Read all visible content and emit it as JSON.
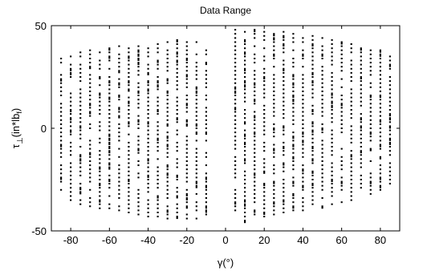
{
  "chart_data": {
    "type": "scatter",
    "title": "Data Range",
    "xlabel": "γ(°)",
    "ylabel": {
      "base": "τ",
      "sub": "⊥",
      "unit_pre": "(in*lb",
      "unit_sub": "f",
      "unit_post": ")"
    },
    "xlim": [
      -90,
      90
    ],
    "ylim": [
      -50,
      50
    ],
    "xticks": [
      -80,
      -60,
      -40,
      -20,
      0,
      20,
      40,
      60,
      80
    ],
    "xtick_labels": [
      "-80",
      "-60",
      "-40",
      "-20",
      "0",
      "20",
      "40",
      "60",
      "80"
    ],
    "yticks": [
      -50,
      0,
      50
    ],
    "ytick_labels": [
      "-50",
      "0",
      "50"
    ],
    "grid": false,
    "legend": "none",
    "marker_color": "#000000",
    "columns": [
      {
        "x": -85,
        "ymin": -30,
        "ymax": 34
      },
      {
        "x": -80,
        "ymin": -35,
        "ymax": 36
      },
      {
        "x": -75,
        "ymin": -37,
        "ymax": 37
      },
      {
        "x": -70,
        "ymin": -38,
        "ymax": 38
      },
      {
        "x": -65,
        "ymin": -39,
        "ymax": 38
      },
      {
        "x": -60,
        "ymin": -39,
        "ymax": 39
      },
      {
        "x": -55,
        "ymin": -40,
        "ymax": 40
      },
      {
        "x": -50,
        "ymin": -41,
        "ymax": 40
      },
      {
        "x": -45,
        "ymin": -42,
        "ymax": 41
      },
      {
        "x": -40,
        "ymin": -43,
        "ymax": 42
      },
      {
        "x": -35,
        "ymin": -43,
        "ymax": 42
      },
      {
        "x": -30,
        "ymin": -44,
        "ymax": 43
      },
      {
        "x": -25,
        "ymin": -43,
        "ymax": 43
      },
      {
        "x": -20,
        "ymin": -44,
        "ymax": 43
      },
      {
        "x": -15,
        "ymin": -44,
        "ymax": 42
      },
      {
        "x": -10,
        "ymin": -42,
        "ymax": 40
      },
      {
        "x": 5,
        "ymin": -42,
        "ymax": 48
      },
      {
        "x": 10,
        "ymin": -45,
        "ymax": 49
      },
      {
        "x": 15,
        "ymin": -44,
        "ymax": 48
      },
      {
        "x": 20,
        "ymin": -43,
        "ymax": 48
      },
      {
        "x": 25,
        "ymin": -42,
        "ymax": 47
      },
      {
        "x": 30,
        "ymin": -41,
        "ymax": 47
      },
      {
        "x": 35,
        "ymin": -40,
        "ymax": 46
      },
      {
        "x": 40,
        "ymin": -40,
        "ymax": 45
      },
      {
        "x": 45,
        "ymin": -39,
        "ymax": 45
      },
      {
        "x": 50,
        "ymin": -38,
        "ymax": 44
      },
      {
        "x": 55,
        "ymin": -37,
        "ymax": 43
      },
      {
        "x": 60,
        "ymin": -36,
        "ymax": 42
      },
      {
        "x": 65,
        "ymin": -35,
        "ymax": 41
      },
      {
        "x": 70,
        "ymin": -33,
        "ymax": 40
      },
      {
        "x": 75,
        "ymin": -32,
        "ymax": 39
      },
      {
        "x": 80,
        "ymin": -30,
        "ymax": 38
      },
      {
        "x": 85,
        "ymin": -27,
        "ymax": 36
      }
    ],
    "y_step": 2
  }
}
